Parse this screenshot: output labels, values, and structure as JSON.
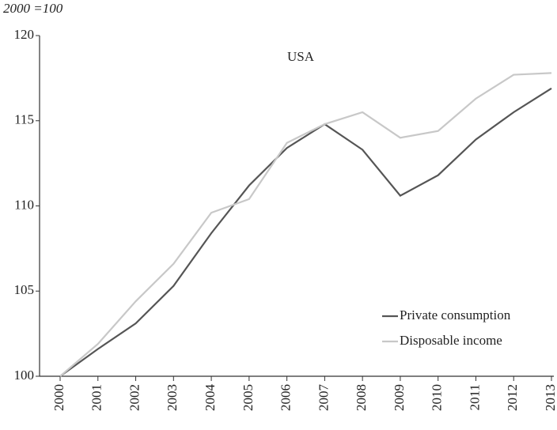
{
  "chart_data": {
    "type": "line",
    "title": "USA",
    "y_label": "2000 =100",
    "categories": [
      "2000",
      "2001",
      "2002",
      "2003",
      "2004",
      "2005",
      "2006",
      "2007",
      "2008",
      "2009",
      "2010",
      "2011",
      "2012",
      "2013"
    ],
    "series": [
      {
        "name": "Private consumption",
        "color": "#555555",
        "values": [
          100,
          101.6,
          103.1,
          105.3,
          108.4,
          111.2,
          113.4,
          114.8,
          113.3,
          110.6,
          111.8,
          113.9,
          115.5,
          116.9
        ]
      },
      {
        "name": "Disposable income",
        "color": "#c8c8c8",
        "values": [
          100,
          101.9,
          104.4,
          106.6,
          109.6,
          110.4,
          113.7,
          114.8,
          115.5,
          114.0,
          114.4,
          116.3,
          117.7,
          117.8
        ]
      }
    ],
    "ylim": [
      100,
      120
    ],
    "yticks": [
      100,
      105,
      110,
      115,
      120
    ],
    "legend": "lower-right"
  }
}
